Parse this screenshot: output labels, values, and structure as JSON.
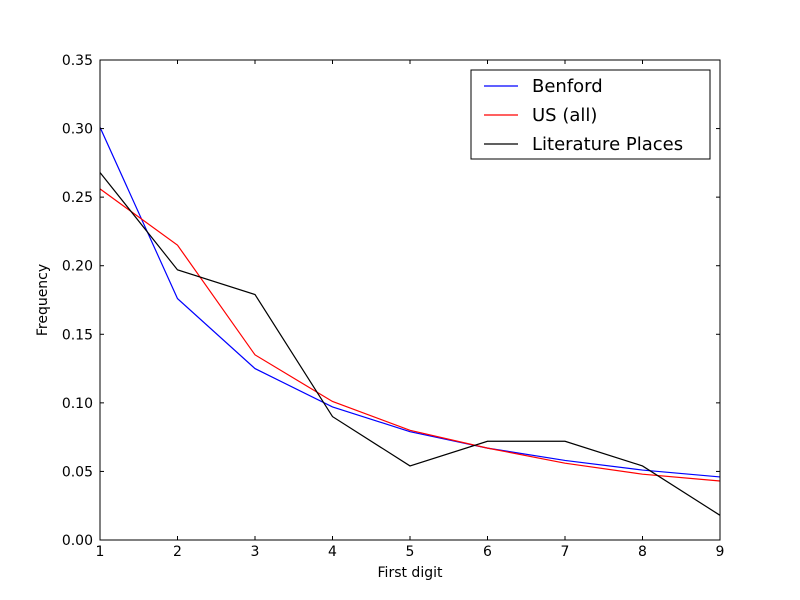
{
  "chart_data": {
    "type": "line",
    "xlabel": "First digit",
    "ylabel": "Frequency",
    "xlim": [
      1,
      9
    ],
    "ylim": [
      0,
      0.35
    ],
    "x_ticks": [
      "1",
      "2",
      "3",
      "4",
      "5",
      "6",
      "7",
      "8",
      "9"
    ],
    "y_ticks": [
      "0.00",
      "0.05",
      "0.10",
      "0.15",
      "0.20",
      "0.25",
      "0.30",
      "0.35"
    ],
    "grid": false,
    "legend": "top-right",
    "x": [
      1,
      2,
      3,
      4,
      5,
      6,
      7,
      8,
      9
    ],
    "series": [
      {
        "name": "Benford",
        "color": "#0000ff",
        "values": [
          0.301,
          0.176,
          0.125,
          0.097,
          0.079,
          0.067,
          0.058,
          0.051,
          0.046
        ]
      },
      {
        "name": "US (all)",
        "color": "#ff0000",
        "values": [
          0.256,
          0.215,
          0.135,
          0.101,
          0.08,
          0.067,
          0.056,
          0.048,
          0.043
        ]
      },
      {
        "name": "Literature Places",
        "color": "#000000",
        "values": [
          0.268,
          0.197,
          0.179,
          0.09,
          0.054,
          0.072,
          0.072,
          0.054,
          0.018
        ]
      }
    ]
  }
}
